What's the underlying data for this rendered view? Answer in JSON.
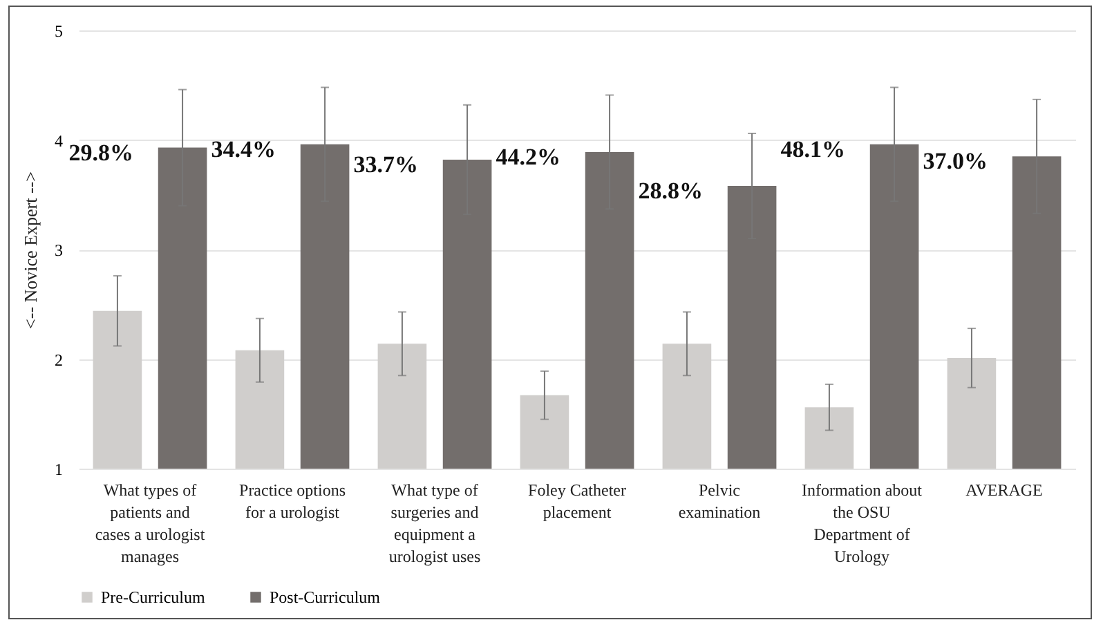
{
  "chart_data": {
    "type": "bar",
    "ylabel": "<-- Novice Expert -->",
    "categories": [
      "What types of patients and cases a urologist manages",
      "Practice options for a urologist",
      "What type of surgeries and equipment a urologist uses",
      "Foley Catheter placement",
      "Pelvic examination",
      "Information about the OSU Department of Urology",
      "AVERAGE"
    ],
    "series": [
      {
        "name": "Pre-Curriculum",
        "color": "#d0cecc",
        "values": [
          2.44,
          2.08,
          2.14,
          1.67,
          2.14,
          1.56,
          2.01
        ],
        "errors": [
          0.32,
          0.29,
          0.29,
          0.22,
          0.29,
          0.21,
          0.27
        ]
      },
      {
        "name": "Post-Curriculum",
        "color": "#736e6c",
        "values": [
          3.93,
          3.96,
          3.82,
          3.89,
          3.58,
          3.96,
          3.85
        ],
        "errors": [
          0.53,
          0.52,
          0.5,
          0.52,
          0.48,
          0.52,
          0.52
        ]
      }
    ],
    "annotations": [
      "29.8%",
      "34.4%",
      "33.7%",
      "44.2%",
      "28.8%",
      "48.1%",
      "37.0%"
    ],
    "ylim": [
      1,
      5
    ],
    "yticks": [
      1,
      2,
      3,
      4,
      5
    ],
    "grid": "y",
    "legend": "bottom"
  }
}
